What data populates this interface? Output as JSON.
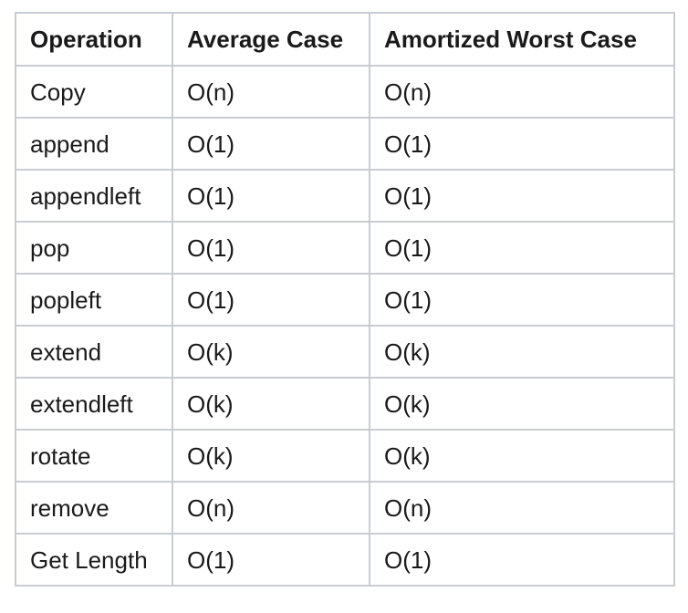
{
  "table": {
    "headers": [
      "Operation",
      "Average Case",
      "Amortized Worst Case"
    ],
    "rows": [
      [
        "Copy",
        "O(n)",
        "O(n)"
      ],
      [
        "append",
        "O(1)",
        "O(1)"
      ],
      [
        "appendleft",
        "O(1)",
        "O(1)"
      ],
      [
        "pop",
        "O(1)",
        "O(1)"
      ],
      [
        "popleft",
        "O(1)",
        "O(1)"
      ],
      [
        "extend",
        "O(k)",
        "O(k)"
      ],
      [
        "extendleft",
        "O(k)",
        "O(k)"
      ],
      [
        "rotate",
        "O(k)",
        "O(k)"
      ],
      [
        "remove",
        "O(n)",
        "O(n)"
      ],
      [
        "Get Length",
        "O(1)",
        "O(1)"
      ]
    ]
  }
}
